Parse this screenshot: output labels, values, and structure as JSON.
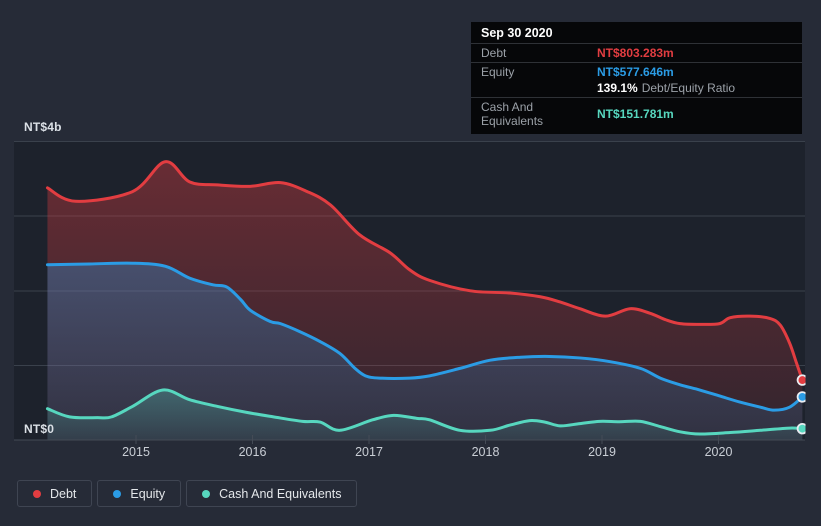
{
  "panel": {
    "bg": "#262b37",
    "plot_bg": "#1d222c",
    "grid_color": "#3a414c",
    "axis_color": "#444b56"
  },
  "colors": {
    "debt": "#e23d41",
    "equity": "#2b9ce5",
    "cash": "#57d7bf"
  },
  "tooltip": {
    "date": "Sep 30 2020",
    "debt_label": "Debt",
    "debt_value": "NT$803.283m",
    "equity_label": "Equity",
    "equity_value": "NT$577.646m",
    "ratio_value": "139.1%",
    "ratio_label": "Debt/Equity Ratio",
    "cash_label": "Cash And Equivalents",
    "cash_value": "NT$151.781m"
  },
  "legend": {
    "items": [
      {
        "key": "debt",
        "label": "Debt"
      },
      {
        "key": "equity",
        "label": "Equity"
      },
      {
        "key": "cash",
        "label": "Cash And Equivalents"
      }
    ]
  },
  "chart_data": {
    "type": "area",
    "unit": "NT$ billions",
    "x_axis": {
      "ticks": [
        2015,
        2016,
        2017,
        2018,
        2019,
        2020
      ],
      "domain": [
        2014.24,
        2020.73
      ]
    },
    "y_axis": {
      "top_label": "NT$4b",
      "bottom_label": "NT$0",
      "lim": [
        0,
        4
      ],
      "gridlines": [
        4,
        3,
        2,
        1
      ]
    },
    "series": [
      {
        "name": "Debt",
        "key": "debt",
        "points": [
          [
            2014.24,
            3.38
          ],
          [
            2014.48,
            3.2
          ],
          [
            2014.97,
            3.33
          ],
          [
            2015.25,
            3.73
          ],
          [
            2015.46,
            3.46
          ],
          [
            2015.7,
            3.42
          ],
          [
            2015.98,
            3.4
          ],
          [
            2016.24,
            3.45
          ],
          [
            2016.47,
            3.33
          ],
          [
            2016.67,
            3.15
          ],
          [
            2016.92,
            2.75
          ],
          [
            2017.18,
            2.51
          ],
          [
            2017.35,
            2.28
          ],
          [
            2017.52,
            2.14
          ],
          [
            2017.87,
            2.0
          ],
          [
            2018.21,
            1.97
          ],
          [
            2018.47,
            1.92
          ],
          [
            2018.64,
            1.85
          ],
          [
            2018.81,
            1.76
          ],
          [
            2019.03,
            1.66
          ],
          [
            2019.24,
            1.76
          ],
          [
            2019.41,
            1.7
          ],
          [
            2019.55,
            1.61
          ],
          [
            2019.67,
            1.56
          ],
          [
            2019.84,
            1.55
          ],
          [
            2020.01,
            1.56
          ],
          [
            2020.1,
            1.64
          ],
          [
            2020.27,
            1.66
          ],
          [
            2020.44,
            1.63
          ],
          [
            2020.53,
            1.54
          ],
          [
            2020.61,
            1.3
          ],
          [
            2020.67,
            1.03
          ],
          [
            2020.72,
            0.8033
          ]
        ]
      },
      {
        "name": "Equity",
        "key": "equity",
        "points": [
          [
            2014.24,
            2.35
          ],
          [
            2014.6,
            2.36
          ],
          [
            2014.97,
            2.37
          ],
          [
            2015.25,
            2.33
          ],
          [
            2015.46,
            2.17
          ],
          [
            2015.66,
            2.08
          ],
          [
            2015.78,
            2.05
          ],
          [
            2015.9,
            1.88
          ],
          [
            2015.98,
            1.74
          ],
          [
            2016.15,
            1.59
          ],
          [
            2016.24,
            1.56
          ],
          [
            2016.41,
            1.45
          ],
          [
            2016.58,
            1.32
          ],
          [
            2016.75,
            1.16
          ],
          [
            2016.88,
            0.96
          ],
          [
            2016.97,
            0.86
          ],
          [
            2017.09,
            0.83
          ],
          [
            2017.35,
            0.83
          ],
          [
            2017.52,
            0.86
          ],
          [
            2017.78,
            0.96
          ],
          [
            2018.04,
            1.07
          ],
          [
            2018.3,
            1.11
          ],
          [
            2018.55,
            1.12
          ],
          [
            2018.81,
            1.1
          ],
          [
            2019.07,
            1.05
          ],
          [
            2019.33,
            0.96
          ],
          [
            2019.5,
            0.83
          ],
          [
            2019.67,
            0.74
          ],
          [
            2019.84,
            0.67
          ],
          [
            2020.01,
            0.59
          ],
          [
            2020.18,
            0.51
          ],
          [
            2020.36,
            0.44
          ],
          [
            2020.48,
            0.4
          ],
          [
            2020.61,
            0.44
          ],
          [
            2020.72,
            0.5776
          ]
        ]
      },
      {
        "name": "Cash And Equivalents",
        "key": "cash",
        "points": [
          [
            2014.24,
            0.42
          ],
          [
            2014.43,
            0.31
          ],
          [
            2014.67,
            0.3
          ],
          [
            2014.79,
            0.31
          ],
          [
            2014.97,
            0.45
          ],
          [
            2015.23,
            0.67
          ],
          [
            2015.46,
            0.54
          ],
          [
            2015.7,
            0.45
          ],
          [
            2015.95,
            0.37
          ],
          [
            2016.18,
            0.31
          ],
          [
            2016.43,
            0.25
          ],
          [
            2016.58,
            0.24
          ],
          [
            2016.75,
            0.13
          ],
          [
            2017.03,
            0.27
          ],
          [
            2017.21,
            0.33
          ],
          [
            2017.41,
            0.29
          ],
          [
            2017.52,
            0.27
          ],
          [
            2017.78,
            0.13
          ],
          [
            2018.04,
            0.13
          ],
          [
            2018.21,
            0.2
          ],
          [
            2018.38,
            0.26
          ],
          [
            2018.51,
            0.24
          ],
          [
            2018.64,
            0.19
          ],
          [
            2018.81,
            0.22
          ],
          [
            2018.98,
            0.25
          ],
          [
            2019.15,
            0.245
          ],
          [
            2019.33,
            0.25
          ],
          [
            2019.5,
            0.18
          ],
          [
            2019.67,
            0.11
          ],
          [
            2019.84,
            0.08
          ],
          [
            2020.1,
            0.1
          ],
          [
            2020.36,
            0.13
          ],
          [
            2020.61,
            0.16
          ],
          [
            2020.72,
            0.1518
          ]
        ]
      }
    ],
    "end_markers": true
  }
}
